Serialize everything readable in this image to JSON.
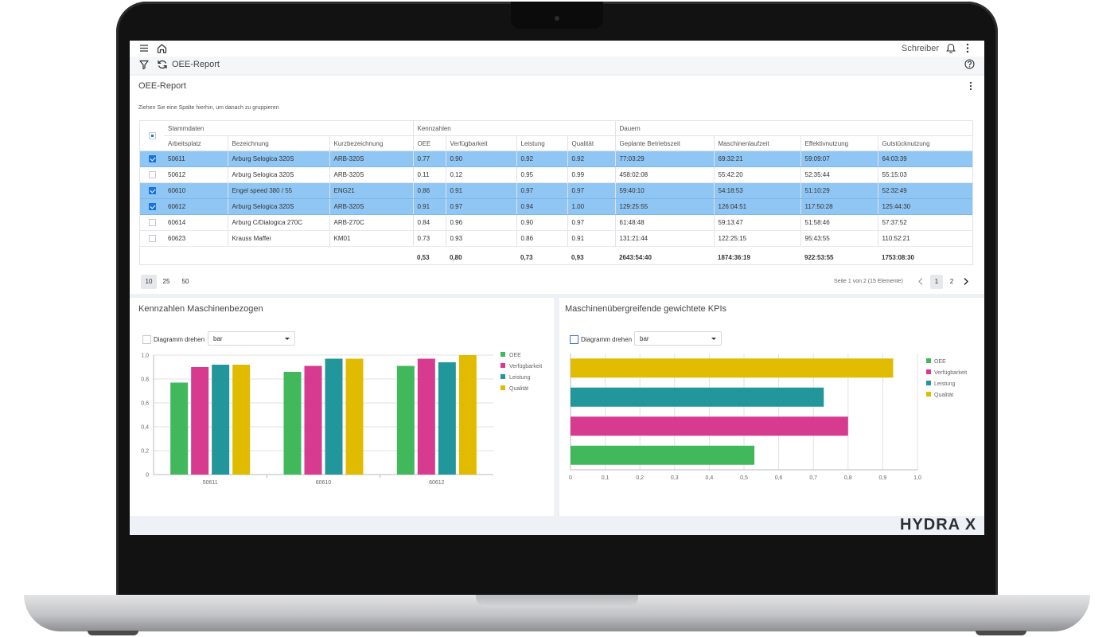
{
  "user": "Schreiber",
  "breadcrumb_title": "OEE-Report",
  "card_title": "OEE-Report",
  "group_hint": "Ziehen Sie eine Spalte hierhin, um danach zu gruppieren",
  "groups": {
    "stammdaten": "Stammdaten",
    "kennzahlen": "Kennzahlen",
    "dauern": "Dauern"
  },
  "columns": [
    "Arbeitsplatz",
    "Bezeichnung",
    "Kurzbezeichnung",
    "OEE",
    "Verfügbarkeit",
    "Leistung",
    "Qualität",
    "Geplante Betriebszeit",
    "Maschinenlaufzeit",
    "Effektivnutzung",
    "Gutstücknutzung"
  ],
  "rows": [
    {
      "selected": true,
      "cells": [
        "50611",
        "Arburg Selogica 320S",
        "ARB-320S",
        "0.77",
        "0.90",
        "0.92",
        "0.92",
        "77:03:29",
        "69:32:21",
        "59:09:07",
        "64:03:39"
      ]
    },
    {
      "selected": false,
      "cells": [
        "50612",
        "Arburg Selogica 320S",
        "ARB-320S",
        "0.11",
        "0.12",
        "0.95",
        "0.99",
        "458:02:08",
        "55:42:20",
        "52:35:44",
        "55:15:03"
      ]
    },
    {
      "selected": true,
      "cells": [
        "60610",
        "Engel speed 380 / 55",
        "ENG21",
        "0.86",
        "0.91",
        "0.97",
        "0.97",
        "59:40:10",
        "54:18:53",
        "51:10:29",
        "52:32:49"
      ]
    },
    {
      "selected": true,
      "cells": [
        "60612",
        "Arburg Selogica 320S",
        "ARB-320S",
        "0.91",
        "0.97",
        "0.94",
        "1.00",
        "129:25:55",
        "126:04:51",
        "117:50:28",
        "125:44:30"
      ]
    },
    {
      "selected": false,
      "cells": [
        "60614",
        "Arburg C/Dialogica 270C",
        "ARB-270C",
        "0.84",
        "0.96",
        "0.90",
        "0.97",
        "61:48:48",
        "59:13:47",
        "51:58:46",
        "57:37:52"
      ]
    },
    {
      "selected": false,
      "cells": [
        "60623",
        "Krauss Maffei",
        "KM01",
        "0.73",
        "0.93",
        "0.86",
        "0.91",
        "131:21:44",
        "122:25:15",
        "95:43:55",
        "110:52:21"
      ]
    }
  ],
  "totals": [
    "",
    "",
    "",
    "0,53",
    "0,80",
    "0,73",
    "0,93",
    "2643:54:40",
    "1874:36:19",
    "922:53:55",
    "1753:08:30"
  ],
  "page_sizes": [
    "10",
    "25",
    "50"
  ],
  "pager_info": "Seite 1 von 2 (15 Elemente)",
  "pages": [
    "1",
    "2"
  ],
  "left_panel": {
    "title": "Kennzahlen Maschinenbezogen",
    "rotate_label": "Diagramm drehen",
    "rotate_checked": false,
    "chart_type_value": "bar"
  },
  "right_panel": {
    "title": "Maschinenübergreifende gewichtete KPIs",
    "rotate_label": "Diagramm drehen",
    "rotate_checked": true,
    "chart_type_value": "bar"
  },
  "brand": "HYDRA X",
  "colors": {
    "oee": "#41b85c",
    "verfuegbarkeit": "#d63b8f",
    "leistung": "#21969b",
    "qualitaet": "#e0bb00",
    "selection": "#90c6f4"
  },
  "icons": [
    "menu-icon",
    "home-icon",
    "bell-icon",
    "more-vertical-icon",
    "filter-icon",
    "refresh-icon",
    "help-icon",
    "chevron-left-icon",
    "chevron-right-icon"
  ],
  "chart_data": [
    {
      "type": "bar",
      "title": "",
      "categories": [
        "50611",
        "60610",
        "60612"
      ],
      "series": [
        {
          "name": "OEE",
          "values": [
            0.77,
            0.86,
            0.91
          ]
        },
        {
          "name": "Verfügbarkeit",
          "values": [
            0.9,
            0.91,
            0.97
          ]
        },
        {
          "name": "Leistung",
          "values": [
            0.92,
            0.97,
            0.94
          ]
        },
        {
          "name": "Qualität",
          "values": [
            0.92,
            0.97,
            1.0
          ]
        }
      ],
      "y_ticks": [
        "0",
        "0,2",
        "0,4",
        "0,6",
        "0,8",
        "1,0"
      ],
      "ylim": [
        0,
        1.0
      ],
      "grid": true,
      "legend": "right"
    },
    {
      "type": "bar",
      "orientation": "horizontal",
      "title": "",
      "categories": [
        "OEE",
        "Verfügbarkeit",
        "Leistung",
        "Qualität"
      ],
      "values": [
        0.53,
        0.8,
        0.73,
        0.93
      ],
      "x_ticks": [
        "0",
        "0,1",
        "0,2",
        "0,3",
        "0,4",
        "0,5",
        "0,6",
        "0,7",
        "0,8",
        "0,9",
        "1,0"
      ],
      "xlim": [
        0,
        1.0
      ],
      "grid": true,
      "legend": "right"
    }
  ]
}
